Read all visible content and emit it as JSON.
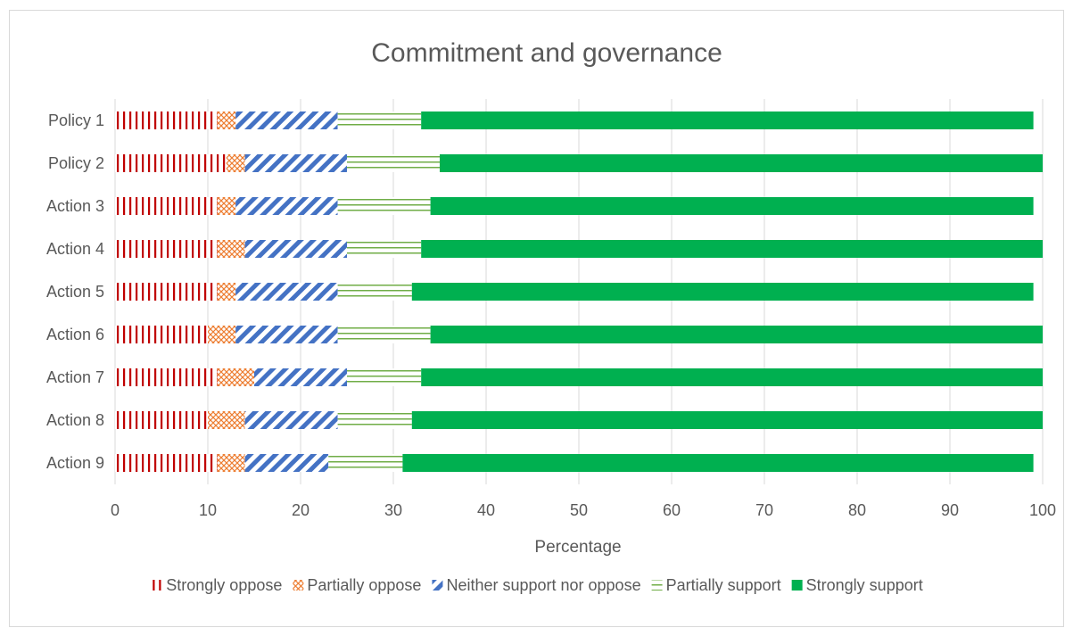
{
  "chart_data": {
    "type": "bar",
    "orientation": "horizontal",
    "stacked": true,
    "title": "Commitment and governance",
    "xlabel": "Percentage",
    "ylabel": "",
    "xlim": [
      0,
      100
    ],
    "x_ticks": [
      "0",
      "10",
      "20",
      "30",
      "40",
      "50",
      "60",
      "70",
      "80",
      "90",
      "100"
    ],
    "grid": true,
    "legend_position": "bottom",
    "categories": [
      "Policy 1",
      "Policy 2",
      "Action 3",
      "Action 4",
      "Action 5",
      "Action 6",
      "Action 7",
      "Action 8",
      "Action 9"
    ],
    "series": [
      {
        "name": "Strongly oppose",
        "color": "#c00000",
        "pattern": "vertical-lines",
        "values": [
          11,
          12,
          11,
          11,
          11,
          10,
          11,
          10,
          11
        ]
      },
      {
        "name": "Partially oppose",
        "color": "#ed7d31",
        "pattern": "crosshatch",
        "values": [
          2,
          2,
          2,
          3,
          2,
          3,
          4,
          4,
          3
        ]
      },
      {
        "name": "Neither support nor oppose",
        "color": "#4472c4",
        "pattern": "wide-diagonal",
        "values": [
          11,
          11,
          11,
          11,
          11,
          11,
          10,
          10,
          9
        ]
      },
      {
        "name": "Partially support",
        "color": "#70ad47",
        "pattern": "horizontal-lines",
        "values": [
          9,
          10,
          10,
          8,
          8,
          10,
          8,
          8,
          8
        ]
      },
      {
        "name": "Strongly support",
        "color": "#00b050",
        "pattern": "solid",
        "values": [
          66,
          65,
          65,
          67,
          67,
          66,
          67,
          68,
          68
        ]
      }
    ]
  }
}
